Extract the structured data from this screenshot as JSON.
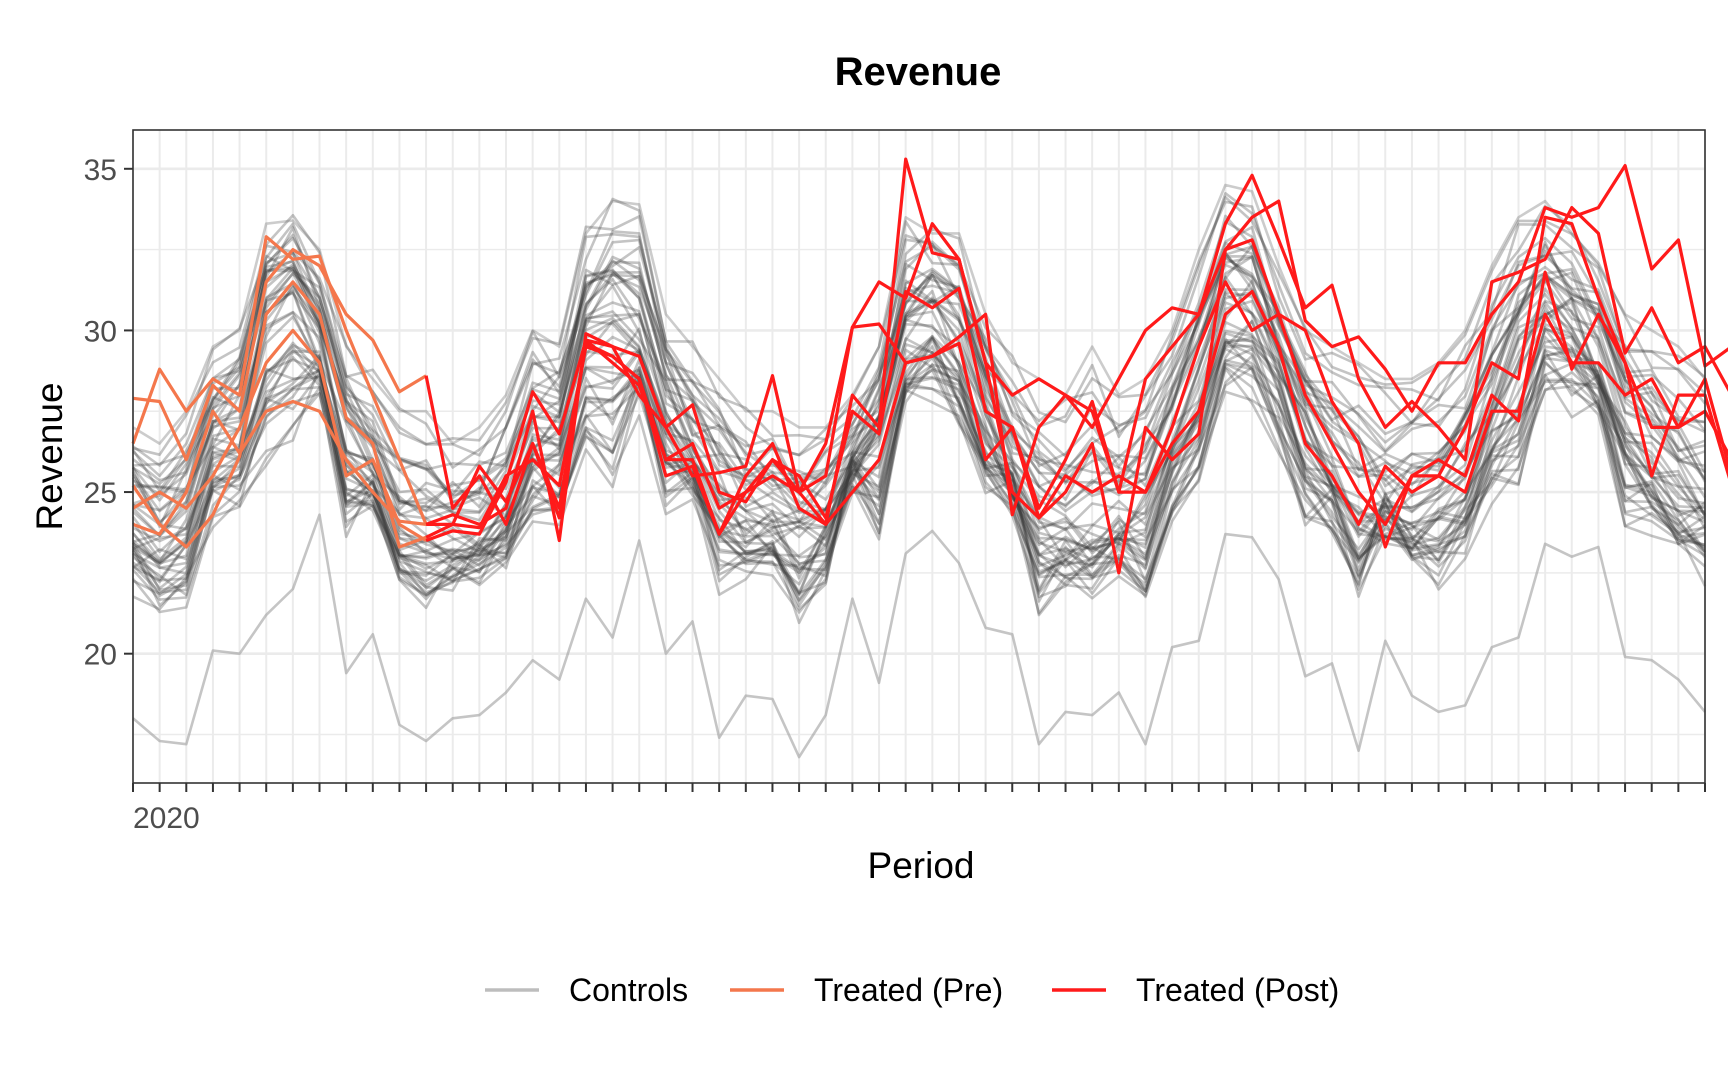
{
  "chart_data": {
    "type": "line",
    "title": "Revenue",
    "xlabel": "Period",
    "ylabel": "Revenue",
    "ylim": [
      16,
      36.2
    ],
    "yticks": [
      20,
      25,
      30,
      35
    ],
    "n_periods": 60,
    "first_tick_label": "2020",
    "grid": true,
    "legend_position": "bottom",
    "legend": [
      {
        "label": "Controls",
        "color": "#bdbdbd"
      },
      {
        "label": "Treated (Pre)",
        "color": "#f4774c"
      },
      {
        "label": "Treated (Post)",
        "color": "#ff1a1a"
      }
    ],
    "treatment_start_period": 13,
    "series_controls_note": "approx. 50 control units",
    "controls_envelope": {
      "upper": [
        27.0,
        26.5,
        27.5,
        29.5,
        30.0,
        33.3,
        33.4,
        32.5,
        29.5,
        28.5,
        27.5,
        27.5,
        26.5,
        27.0,
        28.0,
        30.0,
        29.5,
        33.0,
        34.0,
        33.9,
        30.5,
        29.5,
        28.5,
        27.5,
        27.5,
        27.0,
        27.0,
        28.0,
        29.5,
        33.5,
        33.0,
        33.0,
        30.5,
        29.0,
        28.5,
        28.0,
        29.5,
        28.0,
        28.5,
        30.0,
        32.5,
        34.5,
        34.3,
        32.0,
        30.0,
        29.5,
        29.0,
        28.5,
        28.5,
        29.0,
        30.0,
        32.0,
        33.5,
        34.0,
        33.0,
        32.0,
        30.5,
        30.0,
        29.5,
        28.5
      ],
      "median": [
        24.0,
        23.5,
        24.0,
        26.5,
        27.0,
        30.5,
        31.0,
        29.5,
        26.5,
        25.5,
        24.0,
        23.5,
        23.5,
        23.5,
        24.0,
        26.5,
        27.0,
        30.0,
        30.5,
        30.0,
        27.5,
        26.0,
        25.0,
        24.0,
        24.0,
        23.5,
        24.0,
        25.5,
        27.0,
        30.0,
        30.5,
        29.5,
        27.0,
        25.5,
        24.0,
        23.5,
        23.5,
        24.0,
        24.5,
        26.5,
        28.5,
        31.0,
        31.0,
        29.0,
        27.0,
        25.5,
        24.5,
        24.0,
        24.0,
        24.5,
        25.5,
        27.5,
        29.5,
        31.0,
        30.5,
        29.0,
        27.0,
        26.0,
        25.0,
        24.5
      ],
      "lower": [
        18.0,
        17.3,
        17.2,
        20.1,
        20.0,
        21.2,
        22.0,
        24.3,
        19.4,
        20.6,
        17.8,
        17.3,
        18.0,
        18.1,
        18.8,
        19.8,
        19.2,
        21.7,
        20.5,
        23.5,
        20.0,
        21.0,
        17.4,
        18.7,
        18.6,
        16.8,
        18.1,
        21.7,
        19.1,
        23.1,
        23.8,
        22.8,
        20.8,
        20.6,
        17.2,
        18.2,
        18.1,
        18.8,
        17.2,
        20.2,
        20.4,
        23.7,
        23.6,
        22.3,
        19.3,
        19.7,
        17.0,
        20.4,
        18.7,
        18.2,
        18.4,
        20.2,
        20.5,
        23.4,
        23.0,
        23.3,
        19.9,
        19.8,
        19.2,
        18.2
      ]
    },
    "treated_pre": [
      [
        27.9,
        27.8,
        26.0,
        28.3,
        27.5,
        31.5,
        32.5,
        32.0,
        30.5,
        29.7,
        28.1,
        28.6
      ],
      [
        26.5,
        28.8,
        27.5,
        28.5,
        28.0,
        32.9,
        32.2,
        32.3,
        30.0,
        28.0,
        26.0,
        24.0
      ],
      [
        25.2,
        24.0,
        23.3,
        24.3,
        26.1,
        30.5,
        31.5,
        30.5,
        27.3,
        26.5,
        23.3,
        23.6
      ],
      [
        24.5,
        25.0,
        24.5,
        25.5,
        27.0,
        29.0,
        30.0,
        29.0,
        25.5,
        26.0,
        24.0,
        23.5
      ],
      [
        24.0,
        23.7,
        25.0,
        27.5,
        26.2,
        27.5,
        27.8,
        27.5,
        26.0,
        25.0,
        24.1,
        24.0
      ]
    ],
    "treated_post": [
      [
        24.5,
        25.5,
        24.0,
        26.5,
        24.5,
        29.6,
        29.2,
        28.5,
        25.5,
        25.8,
        23.7,
        25.0,
        26.0,
        25.0,
        24.0,
        25.0,
        26.0,
        29.0,
        29.2,
        29.6,
        26.0,
        27.0,
        24.2,
        25.5,
        25.0,
        25.5,
        25.0,
        26.5,
        27.5,
        30.5,
        31.2,
        29.5,
        26.5,
        25.5,
        24.0,
        25.8,
        25.0,
        25.5,
        25.0,
        27.5,
        27.5,
        30.5,
        29.0,
        29.0,
        28.0,
        28.5,
        27.0,
        27.5,
        26.0,
        25.2
      ],
      [
        24.3,
        24.0,
        24.5,
        27.5,
        23.5,
        29.9,
        29.5,
        29.2,
        27.0,
        27.7,
        25.0,
        24.7,
        26.0,
        25.5,
        24.2,
        27.5,
        26.8,
        31.2,
        30.7,
        31.3,
        27.5,
        27.0,
        24.5,
        26.0,
        27.8,
        25.0,
        25.0,
        27.0,
        29.5,
        31.5,
        30.0,
        30.5,
        28.0,
        26.5,
        25.0,
        24.0,
        25.5,
        26.0,
        25.5,
        28.0,
        27.2,
        31.8,
        28.8,
        30.5,
        29.0,
        27.0,
        27.0,
        28.5,
        25.5,
        26.5
      ],
      [
        24.0,
        23.9,
        25.5,
        26.0,
        25.2,
        29.5,
        29.2,
        28.5,
        26.0,
        26.0,
        23.7,
        25.5,
        26.5,
        24.5,
        24.0,
        28.0,
        27.0,
        35.3,
        32.4,
        32.2,
        29.0,
        25.0,
        24.2,
        25.0,
        26.5,
        22.5,
        27.0,
        26.0,
        26.8,
        32.5,
        32.8,
        30.5,
        30.0,
        27.8,
        26.5,
        23.3,
        25.5,
        25.5,
        27.0,
        29.0,
        28.5,
        33.5,
        33.3,
        31.0,
        29.0,
        25.5,
        28.0,
        28.0,
        25.2,
        27.5
      ],
      [
        23.8,
        23.7,
        25.3,
        28.1,
        26.8,
        29.7,
        29.5,
        28.0,
        27.0,
        25.5,
        25.6,
        25.8,
        28.6,
        25.0,
        26.5,
        30.1,
        30.2,
        29.0,
        29.2,
        29.8,
        30.5,
        24.3,
        27.0,
        28.0,
        27.5,
        25.0,
        28.5,
        29.5,
        30.5,
        33.3,
        34.8,
        32.8,
        30.7,
        31.4,
        28.5,
        27.0,
        27.8,
        27.0,
        26.0,
        31.5,
        31.8,
        32.2,
        33.8,
        33.0,
        29.3,
        30.7,
        29.0,
        29.5,
        28.0,
        28.3
      ],
      [
        24.0,
        25.8,
        24.7,
        26.5,
        24.2,
        29.7,
        29.0,
        28.3,
        26.0,
        26.5,
        24.5,
        25.0,
        25.5,
        25.0,
        25.5,
        30.1,
        31.5,
        31.0,
        33.3,
        32.2,
        29.0,
        28.0,
        28.5,
        28.0,
        27.0,
        28.5,
        30.0,
        30.7,
        30.5,
        32.5,
        33.5,
        34.0,
        30.3,
        29.5,
        29.8,
        28.8,
        27.5,
        29.0,
        29.0,
        30.5,
        31.5,
        33.8,
        33.5,
        33.8,
        35.1,
        31.9,
        32.8,
        28.9,
        29.5,
        28.5
      ]
    ]
  }
}
